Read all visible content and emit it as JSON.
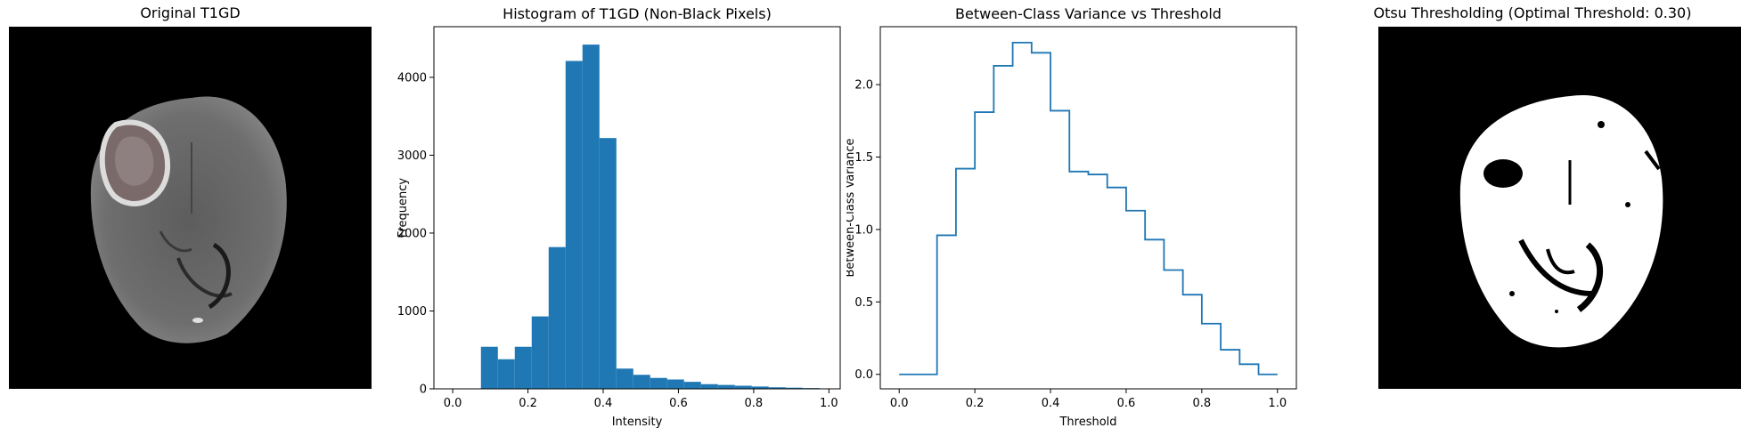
{
  "panels": {
    "original": {
      "title": "Original T1GD"
    },
    "otsu": {
      "title": "Otsu Thresholding (Optimal Threshold: 0.30)"
    }
  },
  "chart_data": [
    {
      "type": "bar",
      "title": "Histogram of T1GD (Non-Black Pixels)",
      "xlabel": "Intensity",
      "ylabel": "Frequency",
      "xlim": [
        -0.05,
        1.03
      ],
      "ylim": [
        0,
        4650
      ],
      "xticks": [
        "0.0",
        "0.2",
        "0.4",
        "0.6",
        "0.8",
        "1.0"
      ],
      "yticks": [
        "0",
        "1000",
        "2000",
        "3000",
        "4000"
      ],
      "bin_edges": [
        0.075,
        0.12,
        0.165,
        0.21,
        0.255,
        0.3,
        0.345,
        0.39,
        0.435,
        0.48,
        0.525,
        0.57,
        0.615,
        0.66,
        0.705,
        0.75,
        0.795,
        0.84,
        0.885,
        0.93,
        0.975
      ],
      "values": [
        540,
        380,
        540,
        930,
        1820,
        4210,
        4420,
        3220,
        260,
        180,
        140,
        120,
        90,
        60,
        50,
        40,
        30,
        20,
        15,
        10
      ],
      "color": "#1f77b4"
    },
    {
      "type": "line",
      "title": "Between-Class Variance vs Threshold",
      "xlabel": "Threshold",
      "ylabel": "Between-Class Variance",
      "xlim": [
        -0.05,
        1.05
      ],
      "ylim": [
        -0.1,
        2.4
      ],
      "xticks": [
        "0.0",
        "0.2",
        "0.4",
        "0.6",
        "0.8",
        "1.0"
      ],
      "yticks": [
        "0.0",
        "0.5",
        "1.0",
        "1.5",
        "2.0"
      ],
      "x": [
        0.0,
        0.1,
        0.1,
        0.15,
        0.15,
        0.2,
        0.2,
        0.25,
        0.25,
        0.3,
        0.3,
        0.35,
        0.35,
        0.4,
        0.4,
        0.45,
        0.45,
        0.5,
        0.5,
        0.55,
        0.55,
        0.6,
        0.6,
        0.65,
        0.65,
        0.7,
        0.7,
        0.75,
        0.75,
        0.8,
        0.8,
        0.85,
        0.85,
        0.9,
        0.9,
        0.95,
        0.95,
        1.0
      ],
      "y": [
        0.0,
        0.0,
        0.96,
        0.96,
        1.42,
        1.42,
        1.81,
        1.81,
        2.13,
        2.13,
        2.29,
        2.29,
        2.22,
        2.22,
        1.82,
        1.82,
        1.4,
        1.4,
        1.38,
        1.38,
        1.29,
        1.29,
        1.13,
        1.13,
        0.93,
        0.93,
        0.72,
        0.72,
        0.55,
        0.55,
        0.35,
        0.35,
        0.17,
        0.17,
        0.07,
        0.07,
        0.0,
        0.0
      ],
      "color": "#1f77b4"
    }
  ]
}
